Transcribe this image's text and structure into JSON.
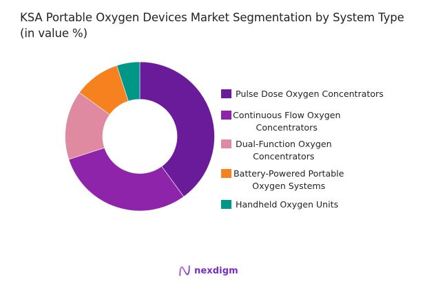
{
  "title": "KSA Portable Oxygen Devices Market Segmentation by System Type (in value %)",
  "chart_data": {
    "type": "pie",
    "variant": "donut",
    "title": "KSA Portable Oxygen Devices Market Segmentation by System Type (in value %)",
    "categories": [
      "Pulse Dose Oxygen Concentrators",
      "Continuous Flow Oxygen Concentrators",
      "Dual-Function Oxygen Concentrators",
      "Battery-Powered Portable Oxygen Systems",
      "Handheld Oxygen Units"
    ],
    "values": [
      40,
      30,
      15,
      10,
      5
    ],
    "colors": [
      "#6a1b9a",
      "#8e24aa",
      "#e08aa2",
      "#f5821f",
      "#009688"
    ],
    "legend_position": "right",
    "data_labels": false
  },
  "legend": {
    "items": [
      {
        "line1": "Pulse Dose Oxygen Concentrators",
        "line2": "",
        "color": "#6a1b9a"
      },
      {
        "line1": "Continuous Flow Oxygen",
        "line2": "Concentrators",
        "color": "#8e24aa"
      },
      {
        "line1": "Dual-Function Oxygen",
        "line2": "Concentrators",
        "color": "#e08aa2"
      },
      {
        "line1": "Battery-Powered Portable",
        "line2": "Oxygen Systems",
        "color": "#f5821f"
      },
      {
        "line1": "Handheld Oxygen Units",
        "line2": "",
        "color": "#009688"
      }
    ]
  },
  "logo": {
    "text": "nexdigm",
    "color": "#7b2fc0"
  }
}
